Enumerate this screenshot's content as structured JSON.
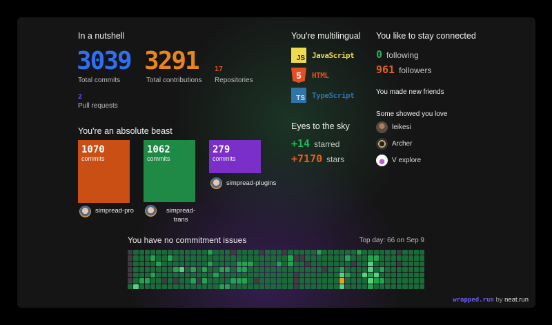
{
  "nutshell": {
    "title": "In a nutshell",
    "commits": "3039",
    "commits_label": "Total commits",
    "contributions": "3291",
    "contributions_label": "Total contributions",
    "repos": "17",
    "repos_label": "Repositories",
    "prs": "2",
    "prs_label": "Pull requests"
  },
  "beast": {
    "title": "You're an absolute beast",
    "unit": "commits",
    "repos": [
      {
        "name": "simpread-pro",
        "commits": 1070,
        "color": "#c94f14"
      },
      {
        "name": "simpread-trans",
        "commits": 1062,
        "color": "#1e8a45"
      },
      {
        "name": "simpread-plugins",
        "commits": 279,
        "color": "#7b2fc9"
      }
    ]
  },
  "languages": {
    "title": "You're multilingual",
    "items": [
      {
        "name": "JavaScript",
        "badge": "JS",
        "color": "#f0db4f",
        "badge_text": "#222"
      },
      {
        "name": "HTML",
        "badge": "5",
        "color": "#e44d26",
        "badge_text": "#fff"
      },
      {
        "name": "TypeScript",
        "badge": "TS",
        "color": "#2f74a8",
        "badge_text": "#cfe3f5"
      }
    ]
  },
  "sky": {
    "title": "Eyes to the sky",
    "starred": "+14",
    "starred_label": "starred",
    "stars": "+7170",
    "stars_label": "stars"
  },
  "connected": {
    "title": "You like to stay connected",
    "following": "0",
    "following_label": "following",
    "followers": "961",
    "followers_label": "followers",
    "friends": "You made new friends",
    "love": "Some showed you love",
    "people": [
      "leikesi",
      "Archer",
      "V explore"
    ]
  },
  "heatmap": {
    "title": "You have no commitment issues",
    "top_day": "Top day: 66 on Sep 9",
    "colors": [
      "#3d3d42",
      "#1b6b3a",
      "#24a24f",
      "#55d17f",
      "#e8a31c"
    ],
    "rows": [
      [
        0,
        1,
        1,
        1,
        1,
        1,
        1,
        1,
        1,
        1,
        1,
        1,
        1,
        1,
        2,
        1,
        1,
        1,
        0,
        1,
        1,
        1,
        1,
        0,
        1,
        1,
        1,
        0,
        1,
        1,
        1,
        1,
        1,
        2,
        1,
        1,
        1,
        1,
        1,
        1,
        2,
        1,
        1,
        1,
        1,
        1,
        1,
        0,
        1,
        1,
        1,
        1
      ],
      [
        0,
        1,
        1,
        1,
        2,
        1,
        1,
        2,
        1,
        1,
        1,
        1,
        1,
        1,
        1,
        1,
        1,
        1,
        1,
        1,
        1,
        1,
        1,
        1,
        1,
        1,
        1,
        1,
        2,
        0,
        0,
        1,
        1,
        1,
        1,
        1,
        1,
        1,
        2,
        1,
        1,
        1,
        2,
        2,
        1,
        1,
        1,
        1,
        1,
        1,
        1,
        1
      ],
      [
        0,
        1,
        1,
        1,
        1,
        2,
        1,
        1,
        1,
        1,
        1,
        1,
        1,
        1,
        2,
        1,
        1,
        1,
        1,
        2,
        2,
        2,
        1,
        1,
        1,
        1,
        2,
        1,
        2,
        1,
        1,
        0,
        1,
        1,
        1,
        1,
        1,
        1,
        1,
        0,
        1,
        1,
        3,
        1,
        1,
        1,
        1,
        0,
        1,
        1,
        1,
        1
      ],
      [
        0,
        1,
        1,
        1,
        1,
        1,
        1,
        1,
        2,
        3,
        1,
        2,
        1,
        2,
        1,
        1,
        2,
        2,
        1,
        2,
        2,
        1,
        1,
        1,
        1,
        1,
        1,
        1,
        1,
        1,
        1,
        1,
        1,
        1,
        0,
        1,
        1,
        2,
        1,
        1,
        1,
        1,
        3,
        1,
        2,
        1,
        1,
        1,
        1,
        1,
        1,
        1
      ],
      [
        0,
        1,
        1,
        1,
        2,
        1,
        1,
        1,
        1,
        1,
        1,
        1,
        1,
        1,
        1,
        2,
        1,
        1,
        1,
        1,
        1,
        1,
        1,
        1,
        1,
        1,
        1,
        1,
        1,
        0,
        1,
        1,
        1,
        1,
        1,
        1,
        1,
        3,
        2,
        1,
        1,
        3,
        2,
        3,
        1,
        1,
        1,
        1,
        1,
        1,
        1,
        1
      ],
      [
        0,
        1,
        2,
        2,
        1,
        1,
        0,
        1,
        0,
        1,
        1,
        2,
        0,
        2,
        1,
        1,
        1,
        1,
        2,
        2,
        2,
        1,
        0,
        1,
        1,
        1,
        1,
        1,
        1,
        0,
        1,
        1,
        1,
        1,
        1,
        1,
        1,
        4,
        1,
        1,
        1,
        1,
        3,
        2,
        2,
        1,
        1,
        1,
        1,
        1,
        1,
        1
      ],
      [
        1,
        3,
        1,
        1,
        1,
        1,
        1,
        1,
        1,
        1,
        1,
        1,
        1,
        1,
        1,
        1,
        2,
        2,
        1,
        1,
        1,
        1,
        1,
        1,
        1,
        1,
        1,
        1,
        1,
        0,
        1,
        1,
        1,
        1,
        1,
        1,
        1,
        3,
        1,
        1,
        1,
        1,
        2,
        1,
        1,
        1,
        1,
        1,
        1,
        1,
        1,
        1
      ]
    ]
  },
  "footer": {
    "brand": "wrapped.run",
    "by": "by",
    "maker": "neat.run"
  }
}
